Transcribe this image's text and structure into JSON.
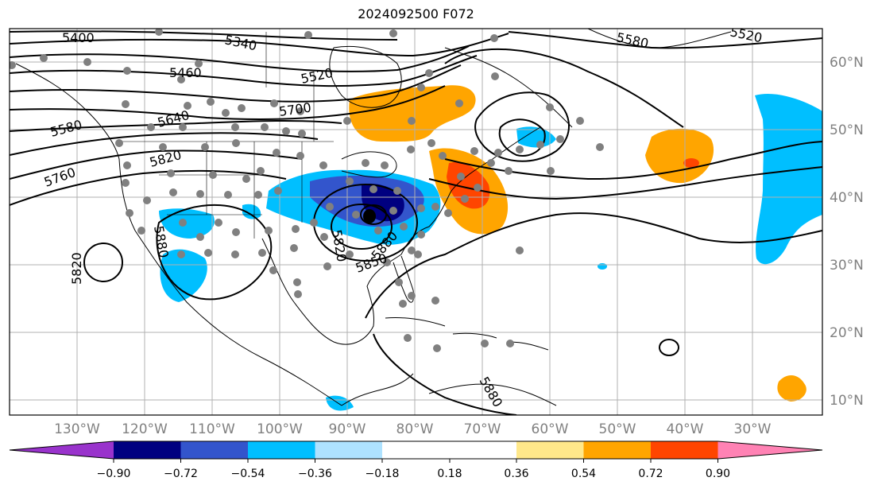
{
  "title": "2024092500 F072",
  "lon_labels": [
    "130°W",
    "120°W",
    "110°W",
    "100°W",
    "90°W",
    "80°W",
    "70°W",
    "60°W",
    "50°W",
    "40°W",
    "30°W"
  ],
  "lat_labels": [
    "60°N",
    "50°N",
    "40°N",
    "30°N",
    "20°N",
    "10°N"
  ],
  "contour_labels": [
    "5400",
    "5340",
    "5460",
    "5520",
    "5580",
    "5520",
    "5580",
    "5640",
    "5700",
    "5760",
    "5820",
    "5820",
    "5880",
    "5820",
    "5850",
    "5880",
    "5880"
  ],
  "colorbar": {
    "ticks": [
      "−0.90",
      "−0.72",
      "−0.54",
      "−0.36",
      "−0.18",
      "0.18",
      "0.36",
      "0.54",
      "0.72",
      "0.90"
    ],
    "colors": [
      "#9933cc",
      "#000080",
      "#3355cc",
      "#00bfff",
      "#aee2ff",
      "#ffffff",
      "#ffe88a",
      "#ffa500",
      "#ff4500",
      "#b22222",
      "#ff82b4"
    ]
  },
  "stations": "grey dots"
}
